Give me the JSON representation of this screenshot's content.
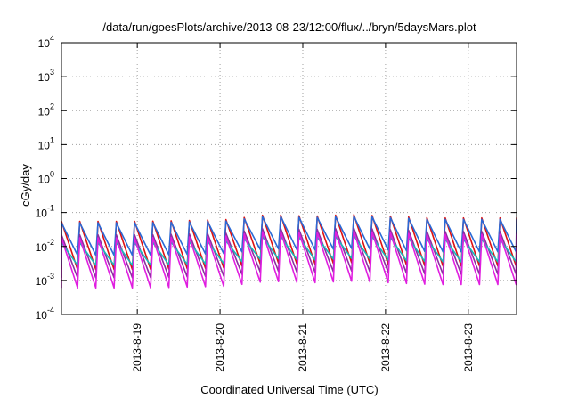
{
  "chart_data": {
    "type": "line",
    "title": "/data/run/goesPlots/archive/2013-08-23/12:00/flux/../bryn/5daysMars.plot",
    "xlabel": "Coordinated Universal Time (UTC)",
    "ylabel": "cGy/day",
    "yscale": "log",
    "ylim": [
      0.0001,
      10000
    ],
    "xlim": [
      "2013-08-18 02:00",
      "2013-08-23 14:00"
    ],
    "grid": true,
    "x_ticks": [
      "2013-8-19",
      "2013-8-20",
      "2013-8-21",
      "2013-8-22",
      "2013-8-23"
    ],
    "y_ticks": [
      {
        "base": "10",
        "exp": "4"
      },
      {
        "base": "10",
        "exp": "3"
      },
      {
        "base": "10",
        "exp": "2"
      },
      {
        "base": "10",
        "exp": "1"
      },
      {
        "base": "10",
        "exp": "0"
      },
      {
        "base": "10",
        "exp": "-1"
      },
      {
        "base": "10",
        "exp": "-2"
      },
      {
        "base": "10",
        "exp": "-3"
      },
      {
        "base": "10",
        "exp": "-4"
      }
    ],
    "pattern": {
      "period_hours": 5.3,
      "rise_fraction": 0.12,
      "envelope_days": [
        0,
        1,
        2,
        2.5,
        3,
        3.5,
        4,
        4.5,
        5,
        5.5
      ],
      "envelope_log10_shift": [
        0.0,
        0.0,
        0.05,
        0.2,
        0.15,
        0.2,
        0.15,
        0.1,
        0.1,
        0.1
      ]
    },
    "series": [
      {
        "color": "#dd1111",
        "peak": 0.055,
        "trough": 0.0021
      },
      {
        "color": "#2a6ad6",
        "peak": 0.05,
        "trough": 0.0055
      },
      {
        "color": "#8b2fa0",
        "peak": 0.022,
        "trough": 0.0012
      },
      {
        "color": "#17b9b9",
        "peak": 0.013,
        "trough": 0.0028
      },
      {
        "color": "#e01ee0",
        "peak": 0.018,
        "trough": 0.0006
      }
    ]
  }
}
